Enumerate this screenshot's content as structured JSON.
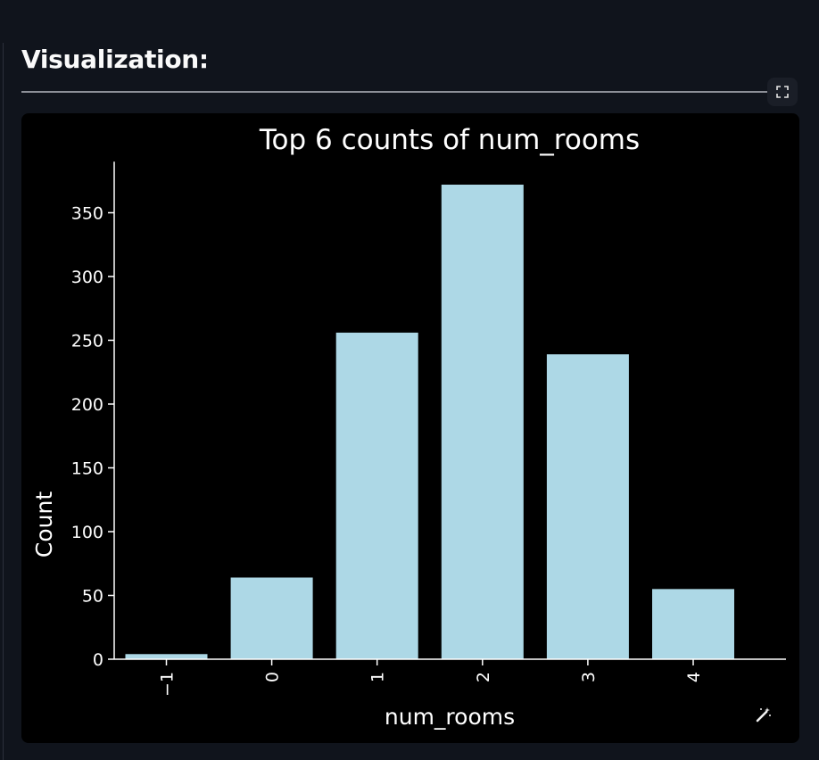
{
  "section": {
    "title": "Visualization:"
  },
  "icons": {
    "fullscreen": "fullscreen-icon",
    "edit": "magic-wand-icon"
  },
  "colors": {
    "bar": "#add8e6",
    "background": "#000000",
    "page": "#10141c"
  },
  "chart_data": {
    "type": "bar",
    "title": "Top 6 counts of num_rooms",
    "xlabel": "num_rooms",
    "ylabel": "Count",
    "categories": [
      "−1",
      "0",
      "1",
      "2",
      "3",
      "4"
    ],
    "values": [
      4,
      64,
      256,
      372,
      239,
      55
    ],
    "ylim": [
      0,
      390
    ],
    "yticks": [
      0,
      50,
      100,
      150,
      200,
      250,
      300,
      350
    ],
    "ytick_labels": [
      "0",
      "50",
      "100",
      "150",
      "200",
      "250",
      "300",
      "350"
    ],
    "xtick_rotation": "vertical",
    "grid": false
  }
}
